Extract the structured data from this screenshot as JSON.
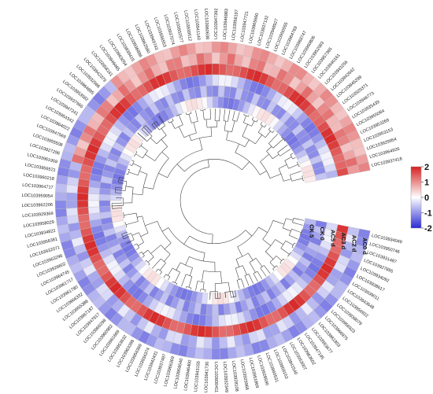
{
  "chart_data": {
    "type": "heatmap",
    "title": "",
    "rings": [
      "AC0d",
      "AC2d",
      "AC3d",
      "AC5d",
      "CK0",
      "CK5"
    ],
    "ring_labels": [
      "AC0 d",
      "AC2 d",
      "AC3 d",
      "AC5 d",
      "CK 0",
      "CK 5"
    ],
    "color_scale": {
      "min": -2,
      "max": 2,
      "low": "#2b2bd6",
      "mid": "#ffffff",
      "high": "#d62020"
    },
    "legend_ticks": [
      2,
      1,
      0,
      -1,
      -2
    ],
    "genes": [
      "LOC103937418",
      "LOC103964926",
      "LOC103929954",
      "LOC103953153",
      "LOC103953269",
      "LOC103955064",
      "LOC103935439",
      "LOC103946773",
      "LOC103929371",
      "LOC103945299",
      "LOC103942642",
      "LOC103943256",
      "LOC103940161",
      "LOC103957365",
      "LOC103952083",
      "LOC103960806",
      "LOC103968747",
      "LOC103964769",
      "LOC103950555",
      "LOC103948927",
      "LOC103937132",
      "LOC103965660",
      "LOC103947721",
      "LOC103958197",
      "LOC103946983",
      "LOC103947392",
      "LOC103960638",
      "LOC103941140",
      "LOC103939512",
      "LOC103932577",
      "LOC103937074",
      "LOC103936553",
      "LOC103949743",
      "LOC103962580",
      "LOC103936888",
      "LOC103939415",
      "LOC103963054",
      "LOC103949465",
      "LOC103958161",
      "LOC103942379",
      "LOC103932566",
      "LOC103964895",
      "LOC103953582",
      "LOC103937966",
      "LOC103947241",
      "LOC103954342",
      "LOC103964022",
      "LOC103947569",
      "LOC103955508",
      "LOC103927296",
      "LOC103961959",
      "LOC103956521",
      "LOC103960218",
      "LOC103964717",
      "LOC103959054",
      "LOC103962206",
      "LOC103929369",
      "LOC103958029",
      "LOC103934822",
      "LOC103956381",
      "LOC103932071",
      "LOC103963296",
      "LOC103926602",
      "LOC103964745",
      "LOC103961717",
      "LOC103961780",
      "LOC103966332",
      "LOC103955388",
      "LOC103967187",
      "LOC103947917",
      "LOC103966298",
      "LOC103960982",
      "LOC103961669",
      "LOC103953632",
      "LOC103963398",
      "LOC103956369",
      "LOC103934374",
      "LOC103942431",
      "LOC103937497",
      "LOC103966369",
      "LOC103959540",
      "LOC103946400",
      "LOC103943155",
      "LOC103941730",
      "LOC103930411",
      "LOC103932349",
      "LOC103928108",
      "LOC103929966",
      "LOC103951869",
      "LOC103928590",
      "LOC103960531",
      "LOC103959153",
      "LOC103941540",
      "LOC103953007",
      "LOC103963602",
      "LOC103947195",
      "LOC103953677",
      "LOC103961803",
      "LOC103966975",
      "LOC103956923",
      "LOC103938079",
      "LOC103956922",
      "LOC103943648",
      "LOC103939011",
      "LOC103938617",
      "LOC103934092",
      "LOC103927895",
      "LOC103931487",
      "LOC103950746",
      "LOC103934049"
    ],
    "values": []
  }
}
